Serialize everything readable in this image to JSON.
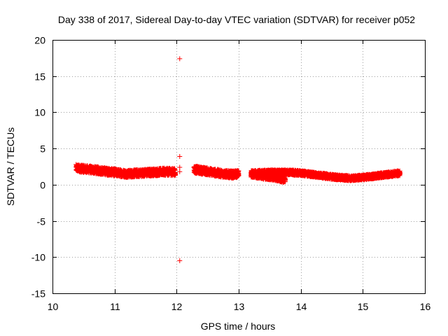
{
  "chart_data": {
    "type": "scatter",
    "title": "Day 338 of 2017, Sidereal Day-to-day VTEC variation (SDTVAR) for receiver p052",
    "xlabel": "GPS time / hours",
    "ylabel": "SDTVAR / TECUs",
    "xlim": [
      10,
      16
    ],
    "ylim": [
      -15,
      20
    ],
    "x_ticks": [
      "10",
      "11",
      "12",
      "13",
      "14",
      "15",
      "16"
    ],
    "y_ticks": [
      "-15",
      "-10",
      "-5",
      "0",
      "5",
      "10",
      "15",
      "20"
    ],
    "grid": true,
    "marker": "plus",
    "color": "#ff0000",
    "bands": [
      {
        "x": [
          10.38,
          10.6,
          10.8,
          11.0,
          11.2,
          11.4,
          11.6,
          11.8,
          11.98
        ],
        "y": [
          2.3,
          2.1,
          1.9,
          1.7,
          1.5,
          1.6,
          1.7,
          1.8,
          1.75
        ],
        "spread": 0.5
      },
      {
        "x": [
          12.28,
          12.45,
          12.6,
          12.75,
          12.9,
          13.0
        ],
        "y": [
          2.1,
          1.9,
          1.7,
          1.5,
          1.4,
          1.5
        ],
        "spread": 0.5
      },
      {
        "x": [
          13.2,
          13.4,
          13.6,
          13.75
        ],
        "y": [
          1.4,
          1.1,
          0.9,
          0.6
        ],
        "spread": 0.35
      },
      {
        "x": [
          13.2,
          13.5,
          13.8,
          14.0,
          14.2,
          14.4,
          14.6,
          14.8,
          15.0,
          15.2,
          15.4,
          15.6
        ],
        "y": [
          1.6,
          1.7,
          1.7,
          1.6,
          1.4,
          1.2,
          1.0,
          0.9,
          1.0,
          1.2,
          1.4,
          1.6
        ],
        "spread": 0.35
      }
    ],
    "outliers": [
      {
        "x": 12.05,
        "y": 17.4
      },
      {
        "x": 12.05,
        "y": 3.9
      },
      {
        "x": 12.05,
        "y": 2.4
      },
      {
        "x": 12.05,
        "y": 1.8
      },
      {
        "x": 12.05,
        "y": -10.5
      }
    ]
  }
}
